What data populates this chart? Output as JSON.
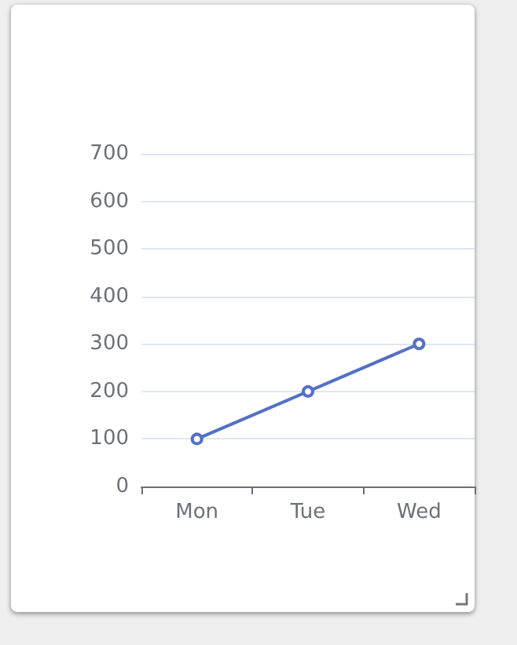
{
  "chart_data": {
    "type": "line",
    "categories": [
      "Mon",
      "Tue",
      "Wed"
    ],
    "series": [
      {
        "color": "#5470c6",
        "values": [
          100,
          200,
          300
        ]
      }
    ],
    "ylim": [
      0,
      700
    ],
    "yticks": [
      0,
      100,
      200,
      300,
      400,
      500,
      600,
      700
    ],
    "grid": "y",
    "marker": "circle",
    "line_style": "solid"
  }
}
